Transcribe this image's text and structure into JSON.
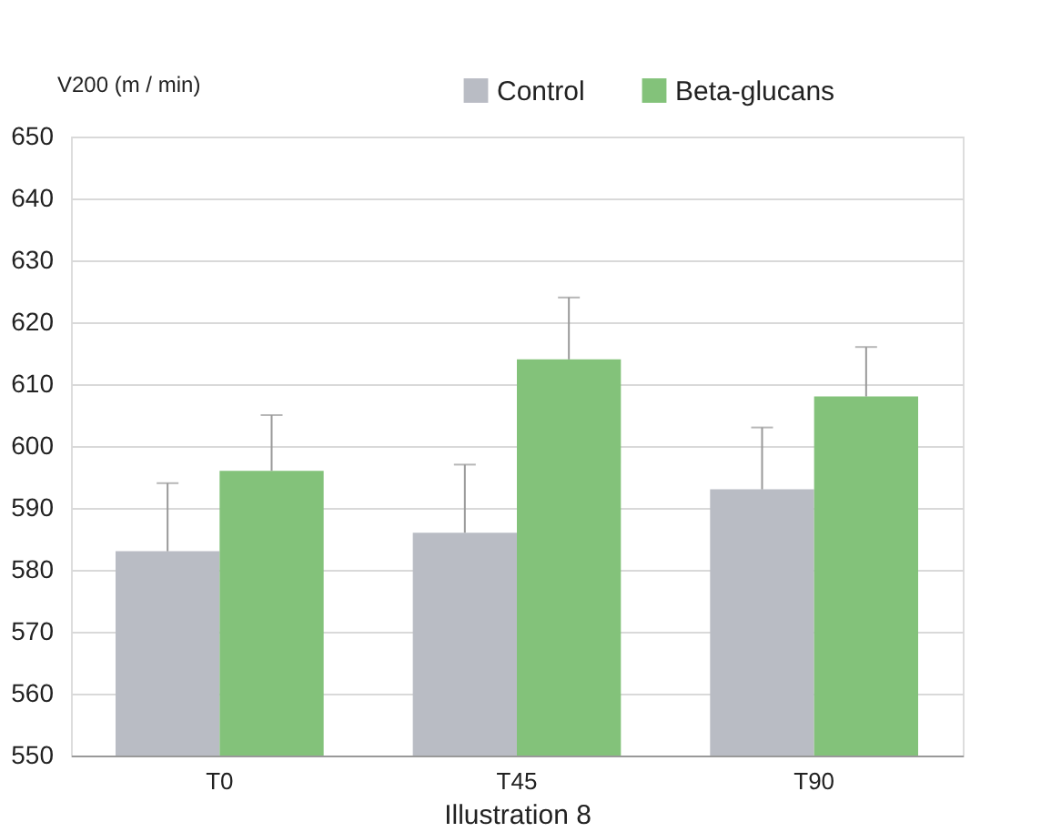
{
  "chart_data": {
    "type": "bar",
    "ylabel": "V200 (m / min)",
    "xlabel": "Illustration 8",
    "categories": [
      "T0",
      "T45",
      "T90"
    ],
    "series": [
      {
        "name": "Control",
        "color": "#b9bcc4",
        "values": [
          583,
          586,
          593
        ],
        "errors": [
          [
            583,
            594
          ],
          [
            586,
            597
          ],
          [
            593,
            603
          ]
        ]
      },
      {
        "name": "Beta-glucans",
        "color": "#83c27a",
        "values": [
          596,
          614,
          608
        ],
        "errors": [
          [
            596,
            605
          ],
          [
            614,
            624
          ],
          [
            608,
            616
          ]
        ]
      }
    ],
    "ylim": [
      550,
      650
    ],
    "yticks": [
      550,
      560,
      570,
      580,
      590,
      600,
      610,
      620,
      630,
      640,
      650
    ],
    "grid": "y",
    "legend": "top right"
  }
}
